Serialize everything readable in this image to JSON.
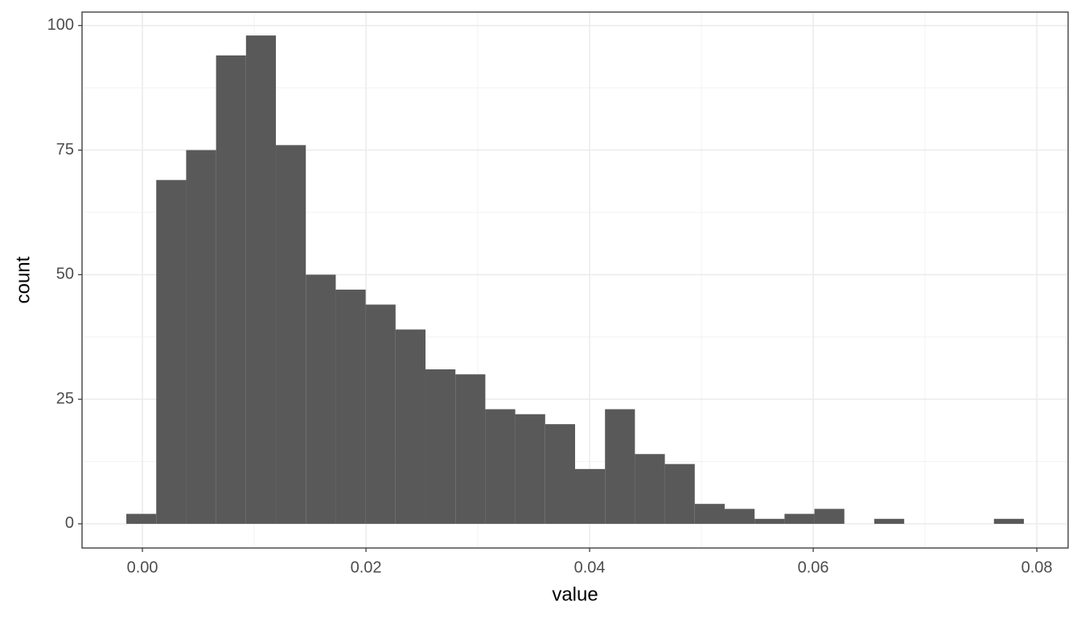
{
  "chart_data": {
    "type": "histogram",
    "x_label": "value",
    "y_label": "count",
    "bins": [
      -0.00144,
      0.001236,
      0.003912,
      0.006588,
      0.009264,
      0.01194,
      0.014616,
      0.017292,
      0.019968,
      0.022644,
      0.02532,
      0.027996,
      0.030672,
      0.033348,
      0.036024,
      0.0387,
      0.041376,
      0.044052,
      0.046728,
      0.049404,
      0.05208,
      0.054756,
      0.057432,
      0.060108,
      0.062784,
      0.06546,
      0.068136,
      0.070812,
      0.073488,
      0.076164,
      0.07884
    ],
    "values": [
      2,
      69,
      75,
      94,
      98,
      76,
      50,
      47,
      44,
      39,
      31,
      30,
      23,
      22,
      20,
      11,
      23,
      14,
      12,
      4,
      3,
      1,
      2,
      3,
      0,
      1,
      0,
      0,
      0,
      1
    ],
    "color": "#595959",
    "xlim": [
      -0.0054,
      0.0828
    ],
    "xticks": [
      {
        "value": 0,
        "label": "0.00"
      },
      0.02,
      0.04,
      0.06,
      0.08
    ],
    "ylim": [
      -4.85,
      102.7
    ],
    "yticks": [
      0,
      25,
      50,
      75,
      100
    ],
    "grid": true
  }
}
